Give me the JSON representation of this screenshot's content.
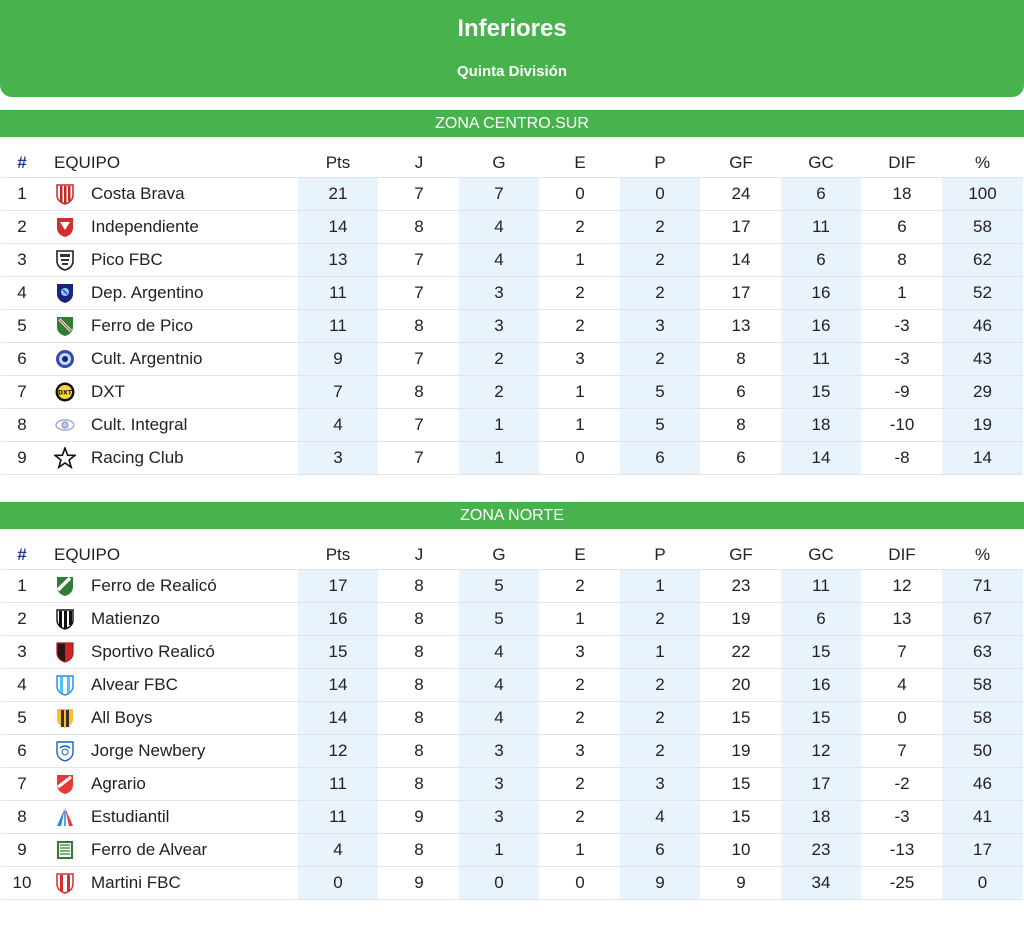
{
  "header": {
    "title": "Inferiores",
    "subtitle": "Quinta División"
  },
  "columns": {
    "pos": "#",
    "team": "EQUIPO",
    "pts": "Pts",
    "j": "J",
    "g": "G",
    "e": "E",
    "p": "P",
    "gf": "GF",
    "gc": "GC",
    "dif": "DIF",
    "pct": "%"
  },
  "zones": [
    {
      "name": "ZONA CENTRO.SUR",
      "rows": [
        {
          "pos": "1",
          "team": "Costa Brava",
          "logo": "stripes-red-shield",
          "pts": "21",
          "j": "7",
          "g": "7",
          "e": "0",
          "p": "0",
          "gf": "24",
          "gc": "6",
          "dif": "18",
          "pct": "100"
        },
        {
          "pos": "2",
          "team": "Independiente",
          "logo": "red-shield",
          "pts": "14",
          "j": "8",
          "g": "4",
          "e": "2",
          "p": "2",
          "gf": "17",
          "gc": "11",
          "dif": "6",
          "pct": "58"
        },
        {
          "pos": "3",
          "team": "Pico FBC",
          "logo": "black-white-shield",
          "pts": "13",
          "j": "7",
          "g": "4",
          "e": "1",
          "p": "2",
          "gf": "14",
          "gc": "6",
          "dif": "8",
          "pct": "62"
        },
        {
          "pos": "4",
          "team": "Dep. Argentino",
          "logo": "navy-shield",
          "pts": "11",
          "j": "7",
          "g": "3",
          "e": "2",
          "p": "2",
          "gf": "17",
          "gc": "16",
          "dif": "1",
          "pct": "52"
        },
        {
          "pos": "5",
          "team": "Ferro de Pico",
          "logo": "green-shield",
          "pts": "11",
          "j": "8",
          "g": "3",
          "e": "2",
          "p": "3",
          "gf": "13",
          "gc": "16",
          "dif": "-3",
          "pct": "46"
        },
        {
          "pos": "6",
          "team": "Cult. Argentnio",
          "logo": "blue-round-crest",
          "pts": "9",
          "j": "7",
          "g": "2",
          "e": "3",
          "p": "2",
          "gf": "8",
          "gc": "11",
          "dif": "-3",
          "pct": "43"
        },
        {
          "pos": "7",
          "team": "DXT",
          "logo": "yellow-round-crest",
          "pts": "7",
          "j": "8",
          "g": "2",
          "e": "1",
          "p": "5",
          "gf": "6",
          "gc": "15",
          "dif": "-9",
          "pct": "29"
        },
        {
          "pos": "8",
          "team": "Cult. Integral",
          "logo": "lilac-emblem",
          "pts": "4",
          "j": "7",
          "g": "1",
          "e": "1",
          "p": "5",
          "gf": "8",
          "gc": "18",
          "dif": "-10",
          "pct": "19"
        },
        {
          "pos": "9",
          "team": "Racing Club",
          "logo": "black-star",
          "pts": "3",
          "j": "7",
          "g": "1",
          "e": "0",
          "p": "6",
          "gf": "6",
          "gc": "14",
          "dif": "-8",
          "pct": "14"
        }
      ]
    },
    {
      "name": "ZONA NORTE",
      "rows": [
        {
          "pos": "1",
          "team": "Ferro de Realicó",
          "logo": "green-diagonal-shield",
          "pts": "17",
          "j": "8",
          "g": "5",
          "e": "2",
          "p": "1",
          "gf": "23",
          "gc": "11",
          "dif": "12",
          "pct": "71"
        },
        {
          "pos": "2",
          "team": "Matienzo",
          "logo": "black-stripes-shield",
          "pts": "16",
          "j": "8",
          "g": "5",
          "e": "1",
          "p": "2",
          "gf": "19",
          "gc": "6",
          "dif": "13",
          "pct": "67"
        },
        {
          "pos": "3",
          "team": "Sportivo Realicó",
          "logo": "red-black-shield",
          "pts": "15",
          "j": "8",
          "g": "4",
          "e": "3",
          "p": "1",
          "gf": "22",
          "gc": "15",
          "dif": "7",
          "pct": "63"
        },
        {
          "pos": "4",
          "team": "Alvear FBC",
          "logo": "skyblue-stripes-shield",
          "pts": "14",
          "j": "8",
          "g": "4",
          "e": "2",
          "p": "2",
          "gf": "20",
          "gc": "16",
          "dif": "4",
          "pct": "58"
        },
        {
          "pos": "5",
          "team": "All Boys",
          "logo": "yellow-black-shield",
          "pts": "14",
          "j": "8",
          "g": "4",
          "e": "2",
          "p": "2",
          "gf": "15",
          "gc": "15",
          "dif": "0",
          "pct": "58"
        },
        {
          "pos": "6",
          "team": "Jorge Newbery",
          "logo": "white-blue-shield",
          "pts": "12",
          "j": "8",
          "g": "3",
          "e": "3",
          "p": "2",
          "gf": "19",
          "gc": "12",
          "dif": "7",
          "pct": "50"
        },
        {
          "pos": "7",
          "team": "Agrario",
          "logo": "red-white-shield",
          "pts": "11",
          "j": "8",
          "g": "3",
          "e": "2",
          "p": "3",
          "gf": "15",
          "gc": "17",
          "dif": "-2",
          "pct": "46"
        },
        {
          "pos": "8",
          "team": "Estudiantil",
          "logo": "blue-red-triangle",
          "pts": "11",
          "j": "9",
          "g": "3",
          "e": "2",
          "p": "4",
          "gf": "15",
          "gc": "18",
          "dif": "-3",
          "pct": "41"
        },
        {
          "pos": "9",
          "team": "Ferro de Alvear",
          "logo": "green-square-crest",
          "pts": "4",
          "j": "8",
          "g": "1",
          "e": "1",
          "p": "6",
          "gf": "10",
          "gc": "23",
          "dif": "-13",
          "pct": "17"
        },
        {
          "pos": "10",
          "team": "Martini FBC",
          "logo": "red-stripes-shield",
          "pts": "0",
          "j": "9",
          "g": "0",
          "e": "0",
          "p": "9",
          "gf": "9",
          "gc": "34",
          "dif": "-25",
          "pct": "0"
        }
      ]
    }
  ]
}
